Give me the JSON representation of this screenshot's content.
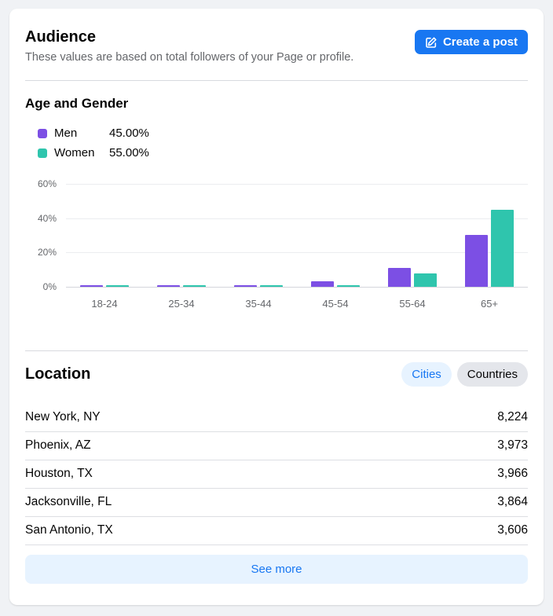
{
  "card": {
    "header": {
      "title": "Audience",
      "subtitle": "These values are based on total followers of your Page or profile.",
      "create_post_label": "Create a post",
      "create_post_icon": "compose-icon"
    },
    "age_gender": {
      "title": "Age and Gender",
      "legend": [
        {
          "label": "Men",
          "value": "45.00%",
          "color": "#7c4fe4"
        },
        {
          "label": "Women",
          "value": "55.00%",
          "color": "#2fc5ad"
        }
      ]
    },
    "location": {
      "title": "Location",
      "tabs": [
        {
          "label": "Cities",
          "selected": true
        },
        {
          "label": "Countries",
          "selected": false
        }
      ],
      "rows": [
        {
          "city": "New York, NY",
          "value": "8,224"
        },
        {
          "city": "Phoenix, AZ",
          "value": "3,973"
        },
        {
          "city": "Houston, TX",
          "value": "3,966"
        },
        {
          "city": "Jacksonville, FL",
          "value": "3,864"
        },
        {
          "city": "San Antonio, TX",
          "value": "3,606"
        }
      ],
      "see_more_label": "See more"
    }
  },
  "chart_data": {
    "type": "bar",
    "title": "Age and Gender",
    "categories": [
      "18-24",
      "25-34",
      "35-44",
      "45-54",
      "55-64",
      "65+"
    ],
    "series": [
      {
        "name": "Men",
        "color": "#7c4fe4",
        "values": [
          0.3,
          0.3,
          0.4,
          3,
          11,
          30
        ]
      },
      {
        "name": "Women",
        "color": "#2fc5ad",
        "values": [
          0.3,
          0.3,
          0.4,
          1,
          8,
          45
        ]
      }
    ],
    "xlabel": "",
    "ylabel": "",
    "ylim": [
      0,
      60
    ],
    "y_ticks": [
      "0%",
      "20%",
      "40%",
      "60%"
    ],
    "grid": true,
    "legend_position": "top-left"
  },
  "colors": {
    "page_background": "#f0f2f5",
    "card_background": "#ffffff",
    "primary_blue": "#1877f2",
    "light_blue_pill": "#e7f3ff",
    "gray_pill": "#e4e6eb",
    "muted_text": "#65676b",
    "men_purple": "#7c4fe4",
    "women_teal": "#2fc5ad"
  }
}
